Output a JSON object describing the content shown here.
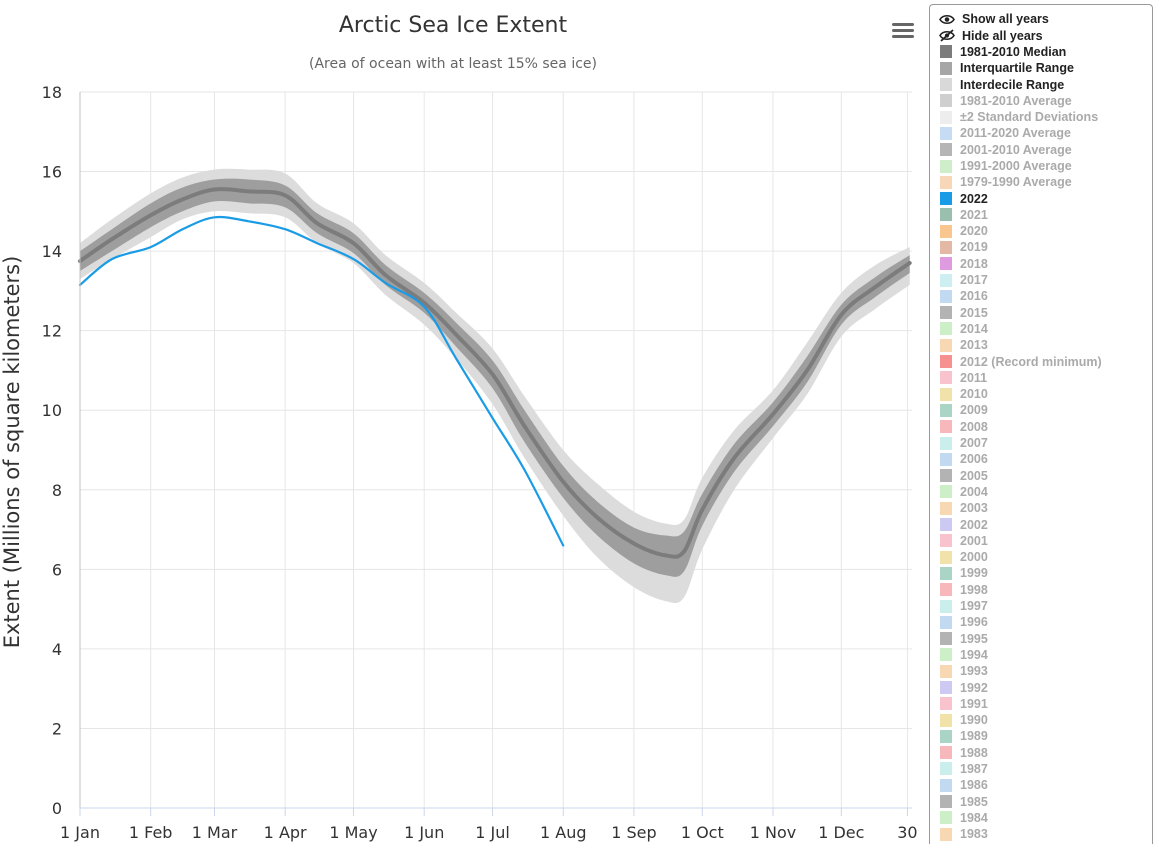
{
  "chart_data": {
    "type": "line",
    "title": "Arctic Sea Ice Extent",
    "subtitle": "(Area of ocean with at least 15% sea ice)",
    "xlabel": "",
    "ylabel": "Extent (Millions of square kilometers)",
    "ylim": [
      0,
      18
    ],
    "yticks": [
      "0",
      "2",
      "4",
      "6",
      "8",
      "10",
      "12",
      "14",
      "16",
      "18"
    ],
    "xlim_day": [
      1,
      366
    ],
    "xticks": [
      {
        "label": "1 Jan",
        "day": 1
      },
      {
        "label": "1 Feb",
        "day": 32
      },
      {
        "label": "1 Mar",
        "day": 60
      },
      {
        "label": "1 Apr",
        "day": 91
      },
      {
        "label": "1 May",
        "day": 121
      },
      {
        "label": "1 Jun",
        "day": 152
      },
      {
        "label": "1 Jul",
        "day": 182
      },
      {
        "label": "1 Aug",
        "day": 213
      },
      {
        "label": "1 Sep",
        "day": 244
      },
      {
        "label": "1 Oct",
        "day": 274
      },
      {
        "label": "1 Nov",
        "day": 305
      },
      {
        "label": "1 Dec",
        "day": 335
      },
      {
        "label": "30",
        "day": 364
      }
    ],
    "grid": true,
    "legend_position": "right",
    "x_day": [
      1,
      15,
      32,
      46,
      60,
      75,
      91,
      105,
      121,
      135,
      152,
      166,
      182,
      196,
      213,
      228,
      244,
      258,
      266,
      274,
      288,
      305,
      320,
      335,
      350,
      365
    ],
    "series": [
      {
        "name": "1981-2010 Median",
        "color": "#7c7c7c",
        "values": [
          13.75,
          14.3,
          14.9,
          15.3,
          15.55,
          15.5,
          15.4,
          14.7,
          14.2,
          13.4,
          12.7,
          11.9,
          10.9,
          9.6,
          8.2,
          7.3,
          6.65,
          6.35,
          6.45,
          7.5,
          8.8,
          9.9,
          11.0,
          12.4,
          13.1,
          13.7
        ]
      },
      {
        "name": "2022",
        "color": "#1a9be6",
        "values": [
          13.15,
          13.8,
          14.1,
          14.55,
          14.85,
          14.75,
          14.55,
          14.2,
          13.8,
          13.2,
          12.6,
          11.3,
          9.8,
          8.5,
          6.6
        ]
      }
    ],
    "bands": [
      {
        "name": "Interquartile Range",
        "color": "#9e9e9e",
        "low": [
          13.5,
          14.0,
          14.6,
          15.0,
          15.25,
          15.2,
          15.1,
          14.45,
          13.95,
          13.15,
          12.45,
          11.6,
          10.55,
          9.2,
          7.8,
          6.85,
          6.15,
          5.85,
          5.95,
          7.1,
          8.45,
          9.6,
          10.7,
          12.15,
          12.85,
          13.45
        ],
        "high": [
          14.0,
          14.55,
          15.2,
          15.6,
          15.8,
          15.8,
          15.65,
          14.95,
          14.45,
          13.65,
          12.95,
          12.2,
          11.25,
          10.0,
          8.6,
          7.7,
          7.05,
          6.85,
          6.95,
          7.9,
          9.15,
          10.2,
          11.35,
          12.65,
          13.35,
          13.9
        ]
      },
      {
        "name": "Interdecile Range",
        "color": "#dcdcdc",
        "low": [
          13.3,
          13.8,
          14.35,
          14.8,
          15.0,
          14.95,
          14.85,
          14.2,
          13.7,
          12.9,
          12.15,
          11.3,
          10.15,
          8.8,
          7.35,
          6.3,
          5.55,
          5.2,
          5.3,
          6.5,
          8.0,
          9.3,
          10.4,
          11.85,
          12.55,
          13.15
        ],
        "high": [
          14.2,
          14.8,
          15.45,
          15.85,
          16.05,
          16.05,
          15.95,
          15.2,
          14.7,
          13.9,
          13.2,
          12.45,
          11.55,
          10.35,
          9.0,
          8.15,
          7.45,
          7.15,
          7.25,
          8.3,
          9.5,
          10.5,
          11.7,
          12.95,
          13.65,
          14.1
        ]
      }
    ]
  },
  "menu": {
    "icon": "hamburger-icon"
  },
  "legend": {
    "controls": [
      {
        "label": "Show all years",
        "icon": "eye-icon"
      },
      {
        "label": "Hide all years",
        "icon": "eye-slash-icon"
      }
    ],
    "items": [
      {
        "label": "1981-2010 Median",
        "color": "#7c7c7c",
        "active": true
      },
      {
        "label": "Interquartile Range",
        "color": "#a6a6a6",
        "active": true
      },
      {
        "label": "Interdecile Range",
        "color": "#d9d9d9",
        "active": true
      },
      {
        "label": "1981-2010 Average",
        "color": "#cfcfcf",
        "active": false
      },
      {
        "label": "±2 Standard Deviations",
        "color": "#ededed",
        "active": false
      },
      {
        "label": "2011-2020 Average",
        "color": "#c6dcf5",
        "active": false
      },
      {
        "label": "2001-2010 Average",
        "color": "#b5b5b5",
        "active": false
      },
      {
        "label": "1991-2000 Average",
        "color": "#cdeec9",
        "active": false
      },
      {
        "label": "1979-1990 Average",
        "color": "#f8d6b8",
        "active": false
      },
      {
        "label": "2022",
        "color": "#1a9be6",
        "active": true
      },
      {
        "label": "2021",
        "color": "#9bbfae",
        "active": false
      },
      {
        "label": "2020",
        "color": "#f8c68e",
        "active": false
      },
      {
        "label": "2019",
        "color": "#e3b8a4",
        "active": false
      },
      {
        "label": "2018",
        "color": "#de9be0",
        "active": false
      },
      {
        "label": "2017",
        "color": "#cdeff2",
        "active": false
      },
      {
        "label": "2016",
        "color": "#c2d9f2",
        "active": false
      },
      {
        "label": "2015",
        "color": "#b3b3b3",
        "active": false
      },
      {
        "label": "2014",
        "color": "#cdefc8",
        "active": false
      },
      {
        "label": "2013",
        "color": "#f8d7b3",
        "active": false
      },
      {
        "label": "2012 (Record minimum)",
        "color": "#f7918f",
        "active": false
      },
      {
        "label": "2011",
        "color": "#f8c3cc",
        "active": false
      },
      {
        "label": "2010",
        "color": "#f0e2a8",
        "active": false
      },
      {
        "label": "2009",
        "color": "#a9d4c6",
        "active": false
      },
      {
        "label": "2008",
        "color": "#f8b7bb",
        "active": false
      },
      {
        "label": "2007",
        "color": "#c9eeeb",
        "active": false
      },
      {
        "label": "2006",
        "color": "#c2d9f2",
        "active": false
      },
      {
        "label": "2005",
        "color": "#b3b3b3",
        "active": false
      },
      {
        "label": "2004",
        "color": "#cdefc8",
        "active": false
      },
      {
        "label": "2003",
        "color": "#f8d7b3",
        "active": false
      },
      {
        "label": "2002",
        "color": "#cccaf2",
        "active": false
      },
      {
        "label": "2001",
        "color": "#f8c3cc",
        "active": false
      },
      {
        "label": "2000",
        "color": "#f0e2a8",
        "active": false
      },
      {
        "label": "1999",
        "color": "#a9d4c6",
        "active": false
      },
      {
        "label": "1998",
        "color": "#f8b7bb",
        "active": false
      },
      {
        "label": "1997",
        "color": "#c9eeeb",
        "active": false
      },
      {
        "label": "1996",
        "color": "#c2d9f2",
        "active": false
      },
      {
        "label": "1995",
        "color": "#b3b3b3",
        "active": false
      },
      {
        "label": "1994",
        "color": "#cdefc8",
        "active": false
      },
      {
        "label": "1993",
        "color": "#f8d7b3",
        "active": false
      },
      {
        "label": "1992",
        "color": "#cccaf2",
        "active": false
      },
      {
        "label": "1991",
        "color": "#f8c3cc",
        "active": false
      },
      {
        "label": "1990",
        "color": "#f0e2a8",
        "active": false
      },
      {
        "label": "1989",
        "color": "#a9d4c6",
        "active": false
      },
      {
        "label": "1988",
        "color": "#f8b7bb",
        "active": false
      },
      {
        "label": "1987",
        "color": "#c9eeeb",
        "active": false
      },
      {
        "label": "1986",
        "color": "#c2d9f2",
        "active": false
      },
      {
        "label": "1985",
        "color": "#b3b3b3",
        "active": false
      },
      {
        "label": "1984",
        "color": "#cdefc8",
        "active": false
      },
      {
        "label": "1983",
        "color": "#f8d7b3",
        "active": false
      }
    ]
  }
}
